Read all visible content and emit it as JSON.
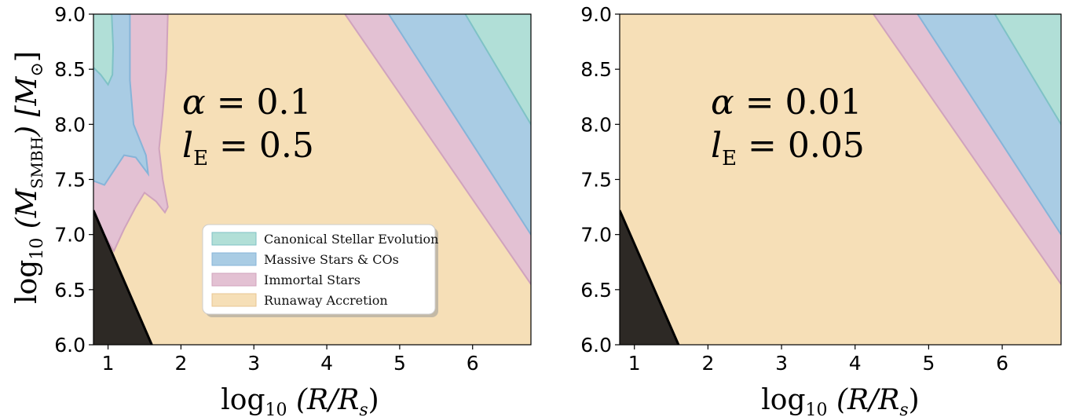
{
  "colors": {
    "runaway": "#f6dfb7",
    "immortal": "#e3c1d3",
    "immortal_edge": "#d0a3bd",
    "massive": "#a9cce4",
    "massive_edge": "#86b4d8",
    "canonical": "#b1dfd7",
    "canonical_edge": "#7fc2c6",
    "excluded": "#262320",
    "excluded_boundary": "#000000"
  },
  "chart_data": [
    {
      "type": "area",
      "panel": "left",
      "xlabel": "log",
      "xlabel_sub": "10",
      "xlabel_rest": " (R/R",
      "xlabel_rest_sub": "s",
      "xlabel_close": ")",
      "ylabel": "log",
      "ylabel_sub": "10",
      "ylabel_var": " (M",
      "ylabel_var_sub": "SMBH",
      "ylabel_unit": ") [M",
      "ylabel_unit_sub": "⊙",
      "ylabel_close": "]",
      "xlim": [
        0.8,
        6.8
      ],
      "ylim": [
        6.0,
        9.0
      ],
      "x_ticks": [
        1,
        2,
        3,
        4,
        5,
        6
      ],
      "x_tick_labels": [
        "1",
        "2",
        "3",
        "4",
        "5",
        "6"
      ],
      "y_ticks": [
        6.0,
        6.5,
        7.0,
        7.5,
        8.0,
        8.5,
        9.0
      ],
      "y_tick_labels": [
        "6.0",
        "6.5",
        "7.0",
        "7.5",
        "8.0",
        "8.5",
        "9.0"
      ],
      "annotation": {
        "line1_lhs": "α",
        "line1_rhs": " = 0.1",
        "line2_lhs": "l",
        "line2_sub": "E",
        "line2_rhs": " = 0.5",
        "at": [
          1.8,
          8.05
        ]
      },
      "regions": {
        "excluded_boundary": [
          [
            0.8,
            7.22
          ],
          [
            1.6,
            6.0
          ]
        ],
        "canonical_upper": [
          [
            5.9,
            9.0
          ],
          [
            6.8,
            8.0
          ]
        ],
        "massive_upper": [
          [
            4.85,
            9.0
          ],
          [
            6.8,
            7.0
          ]
        ],
        "immortal_upper": [
          [
            4.25,
            9.0
          ],
          [
            6.8,
            6.55
          ]
        ],
        "canonical_left": [
          [
            0.8,
            9.0
          ],
          [
            1.05,
            9.0
          ],
          [
            1.07,
            8.7
          ],
          [
            1.06,
            8.45
          ],
          [
            1.0,
            8.36
          ],
          [
            0.9,
            8.45
          ],
          [
            0.8,
            8.55
          ]
        ],
        "massive_left": [
          [
            0.8,
            9.0
          ],
          [
            1.3,
            9.0
          ],
          [
            1.3,
            8.4
          ],
          [
            1.35,
            8.0
          ],
          [
            1.52,
            7.72
          ],
          [
            1.55,
            7.55
          ],
          [
            1.38,
            7.7
          ],
          [
            1.22,
            7.72
          ],
          [
            1.05,
            7.55
          ],
          [
            0.95,
            7.45
          ],
          [
            0.8,
            7.5
          ]
        ],
        "immortal_left": [
          [
            0.8,
            9.0
          ],
          [
            1.82,
            9.0
          ],
          [
            1.8,
            8.5
          ],
          [
            1.75,
            8.1
          ],
          [
            1.7,
            7.78
          ],
          [
            1.75,
            7.5
          ],
          [
            1.82,
            7.25
          ],
          [
            1.78,
            7.2
          ],
          [
            1.66,
            7.3
          ],
          [
            1.5,
            7.38
          ],
          [
            1.38,
            7.25
          ],
          [
            1.22,
            7.05
          ],
          [
            1.08,
            6.85
          ],
          [
            0.95,
            7.0
          ],
          [
            0.8,
            7.25
          ]
        ]
      },
      "legend": {
        "placement": "lower-center",
        "entries": [
          {
            "label": "Canonical Stellar Evolution",
            "color_key": "canonical"
          },
          {
            "label": "Massive Stars & COs",
            "color_key": "massive"
          },
          {
            "label": "Immortal Stars",
            "color_key": "immortal"
          },
          {
            "label": "Runaway Accretion",
            "color_key": "runaway"
          }
        ]
      }
    },
    {
      "type": "area",
      "panel": "right",
      "xlabel": "log",
      "xlabel_sub": "10",
      "xlabel_rest": " (R/R",
      "xlabel_rest_sub": "s",
      "xlabel_close": ")",
      "xlim": [
        0.8,
        6.8
      ],
      "ylim": [
        6.0,
        9.0
      ],
      "x_ticks": [
        1,
        2,
        3,
        4,
        5,
        6
      ],
      "x_tick_labels": [
        "1",
        "2",
        "3",
        "4",
        "5",
        "6"
      ],
      "y_ticks": [
        6.0,
        6.5,
        7.0,
        7.5,
        8.0,
        8.5,
        9.0
      ],
      "y_tick_labels": [
        "6.0",
        "6.5",
        "7.0",
        "7.5",
        "8.0",
        "8.5",
        "9.0"
      ],
      "annotation": {
        "line1_lhs": "α",
        "line1_rhs": " = 0.01",
        "line2_lhs": "l",
        "line2_sub": "E",
        "line2_rhs": " = 0.05",
        "at": [
          1.8,
          8.05
        ]
      },
      "regions": {
        "excluded_boundary": [
          [
            0.8,
            7.22
          ],
          [
            1.6,
            6.0
          ]
        ],
        "canonical_upper": [
          [
            5.9,
            9.0
          ],
          [
            6.8,
            8.0
          ]
        ],
        "massive_upper": [
          [
            4.85,
            9.0
          ],
          [
            6.8,
            7.0
          ]
        ],
        "immortal_upper": [
          [
            4.25,
            9.0
          ],
          [
            6.8,
            6.55
          ]
        ]
      }
    }
  ]
}
